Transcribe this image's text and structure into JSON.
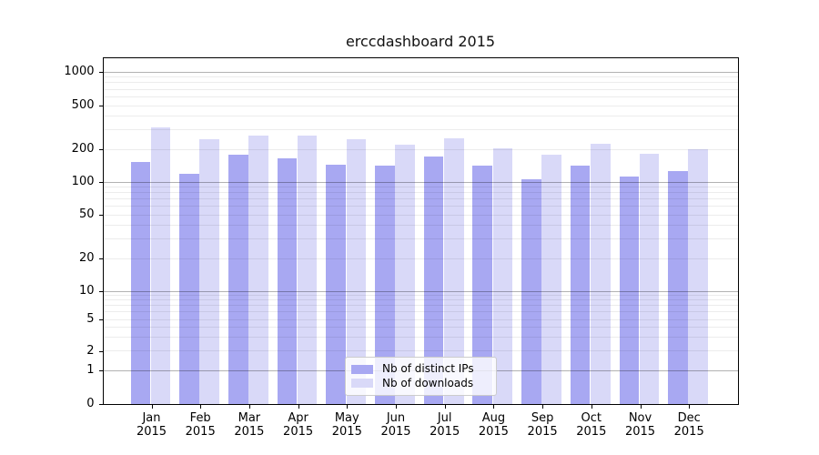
{
  "title": "erccdashboard 2015",
  "chart_data": {
    "type": "bar",
    "title": "erccdashboard 2015",
    "categories": [
      "Jan",
      "Feb",
      "Mar",
      "Apr",
      "May",
      "Jun",
      "Jul",
      "Aug",
      "Sep",
      "Oct",
      "Nov",
      "Dec"
    ],
    "x_tick_year": "2015",
    "series": [
      {
        "name": "Nb of distinct IPs",
        "color": "#a8a8f2",
        "values": [
          152,
          120,
          178,
          165,
          145,
          142,
          172,
          142,
          106,
          141,
          112,
          126
        ]
      },
      {
        "name": "Nb of downloads",
        "color": "#d9d9f8",
        "values": [
          316,
          248,
          266,
          266,
          248,
          219,
          250,
          203,
          178,
          224,
          182,
          199
        ]
      }
    ],
    "yscale": "symlog",
    "ylim": [
      0,
      1400
    ],
    "yticks": [
      0,
      1,
      2,
      5,
      10,
      20,
      50,
      100,
      200,
      500,
      1000
    ],
    "minor_gridlines": [
      2,
      3,
      4,
      5,
      6,
      7,
      8,
      9,
      20,
      30,
      40,
      50,
      60,
      70,
      80,
      90,
      200,
      300,
      400,
      500,
      600,
      700,
      800,
      900
    ],
    "major_gridlines": [
      1,
      10,
      100,
      1000
    ],
    "grid": true,
    "legend_position": "lower center"
  }
}
